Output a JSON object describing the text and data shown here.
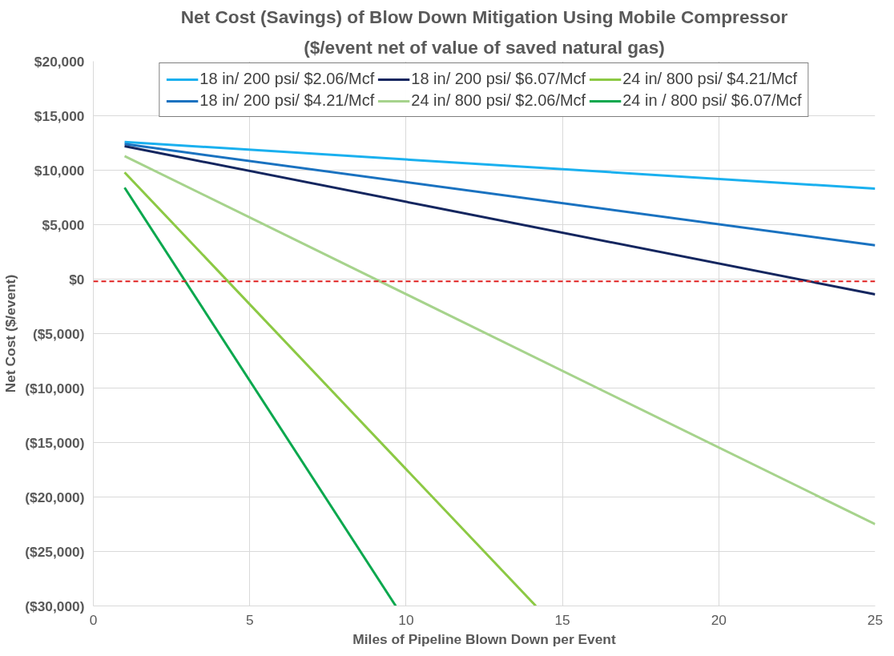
{
  "chart_data": {
    "type": "line",
    "title": "Net Cost (Savings) of Blow Down Mitigation Using Mobile Compressor",
    "subtitle": "($/event net of value of saved natural gas)",
    "xlabel": "Miles of Pipeline Blown Down per Event",
    "ylabel": "Net Cost ($/event)",
    "series": [
      {
        "name": "18 in/ 200 psi/ $2.06/Mcf",
        "color": "#1ab0ef",
        "x": [
          1,
          25
        ],
        "values": [
          12600,
          8300
        ]
      },
      {
        "name": "18 in/ 200 psi/ $4.21/Mcf",
        "color": "#1a72c0",
        "x": [
          1,
          25
        ],
        "values": [
          12400,
          3100
        ]
      },
      {
        "name": "18 in/ 200 psi/ $6.07/Mcf",
        "color": "#14265f",
        "x": [
          1,
          25
        ],
        "values": [
          12200,
          -1400
        ]
      },
      {
        "name": "24 in/ 800 psi/ $2.06/Mcf",
        "color": "#a6d38c",
        "x": [
          1,
          25
        ],
        "values": [
          11300,
          -22500
        ]
      },
      {
        "name": "24 in/ 800 psi/ $4.21/Mcf",
        "color": "#8cc944",
        "x": [
          1,
          14.15
        ],
        "values": [
          9800,
          -30000
        ]
      },
      {
        "name": "24 in / 800 psi/ $6.07/Mcf",
        "color": "#0ba84e",
        "x": [
          1,
          9.67
        ],
        "values": [
          8400,
          -30000
        ]
      }
    ],
    "xlim": [
      0,
      25
    ],
    "xticks": [
      0,
      5,
      10,
      15,
      20,
      25
    ],
    "ylim": [
      -30000,
      20000
    ],
    "yticks": [
      {
        "value": -30000,
        "label": "($30,000)"
      },
      {
        "value": -25000,
        "label": "($25,000)"
      },
      {
        "value": -20000,
        "label": "($20,000)"
      },
      {
        "value": -15000,
        "label": "($15,000)"
      },
      {
        "value": -10000,
        "label": "($10,000)"
      },
      {
        "value": -5000,
        "label": "($5,000)"
      },
      {
        "value": 0,
        "label": "$0"
      },
      {
        "value": 5000,
        "label": "$5,000"
      },
      {
        "value": 10000,
        "label": "$10,000"
      },
      {
        "value": 15000,
        "label": "$15,000"
      },
      {
        "value": 20000,
        "label": "$20,000"
      }
    ],
    "ref_lines": [
      {
        "axis": "y",
        "value": -200,
        "label": null,
        "color": "#e02020",
        "line_style": "dashed"
      }
    ],
    "grid": true,
    "legend": "top",
    "marker": "none",
    "line_style": "solid"
  }
}
